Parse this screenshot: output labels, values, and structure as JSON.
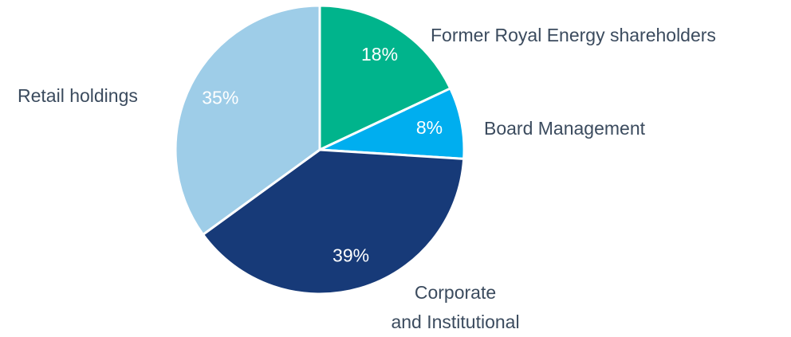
{
  "chart_data": {
    "type": "pie",
    "categories": [
      "Former Royal Energy shareholders",
      "Board Management",
      "Corporate\nand Institutional",
      "Retail holdings"
    ],
    "values": [
      18,
      8,
      39,
      35
    ],
    "value_labels": [
      "18%",
      "8%",
      "39%",
      "35%"
    ],
    "colors": [
      "#00b48c",
      "#00aeef",
      "#173a78",
      "#9ecde8"
    ]
  }
}
